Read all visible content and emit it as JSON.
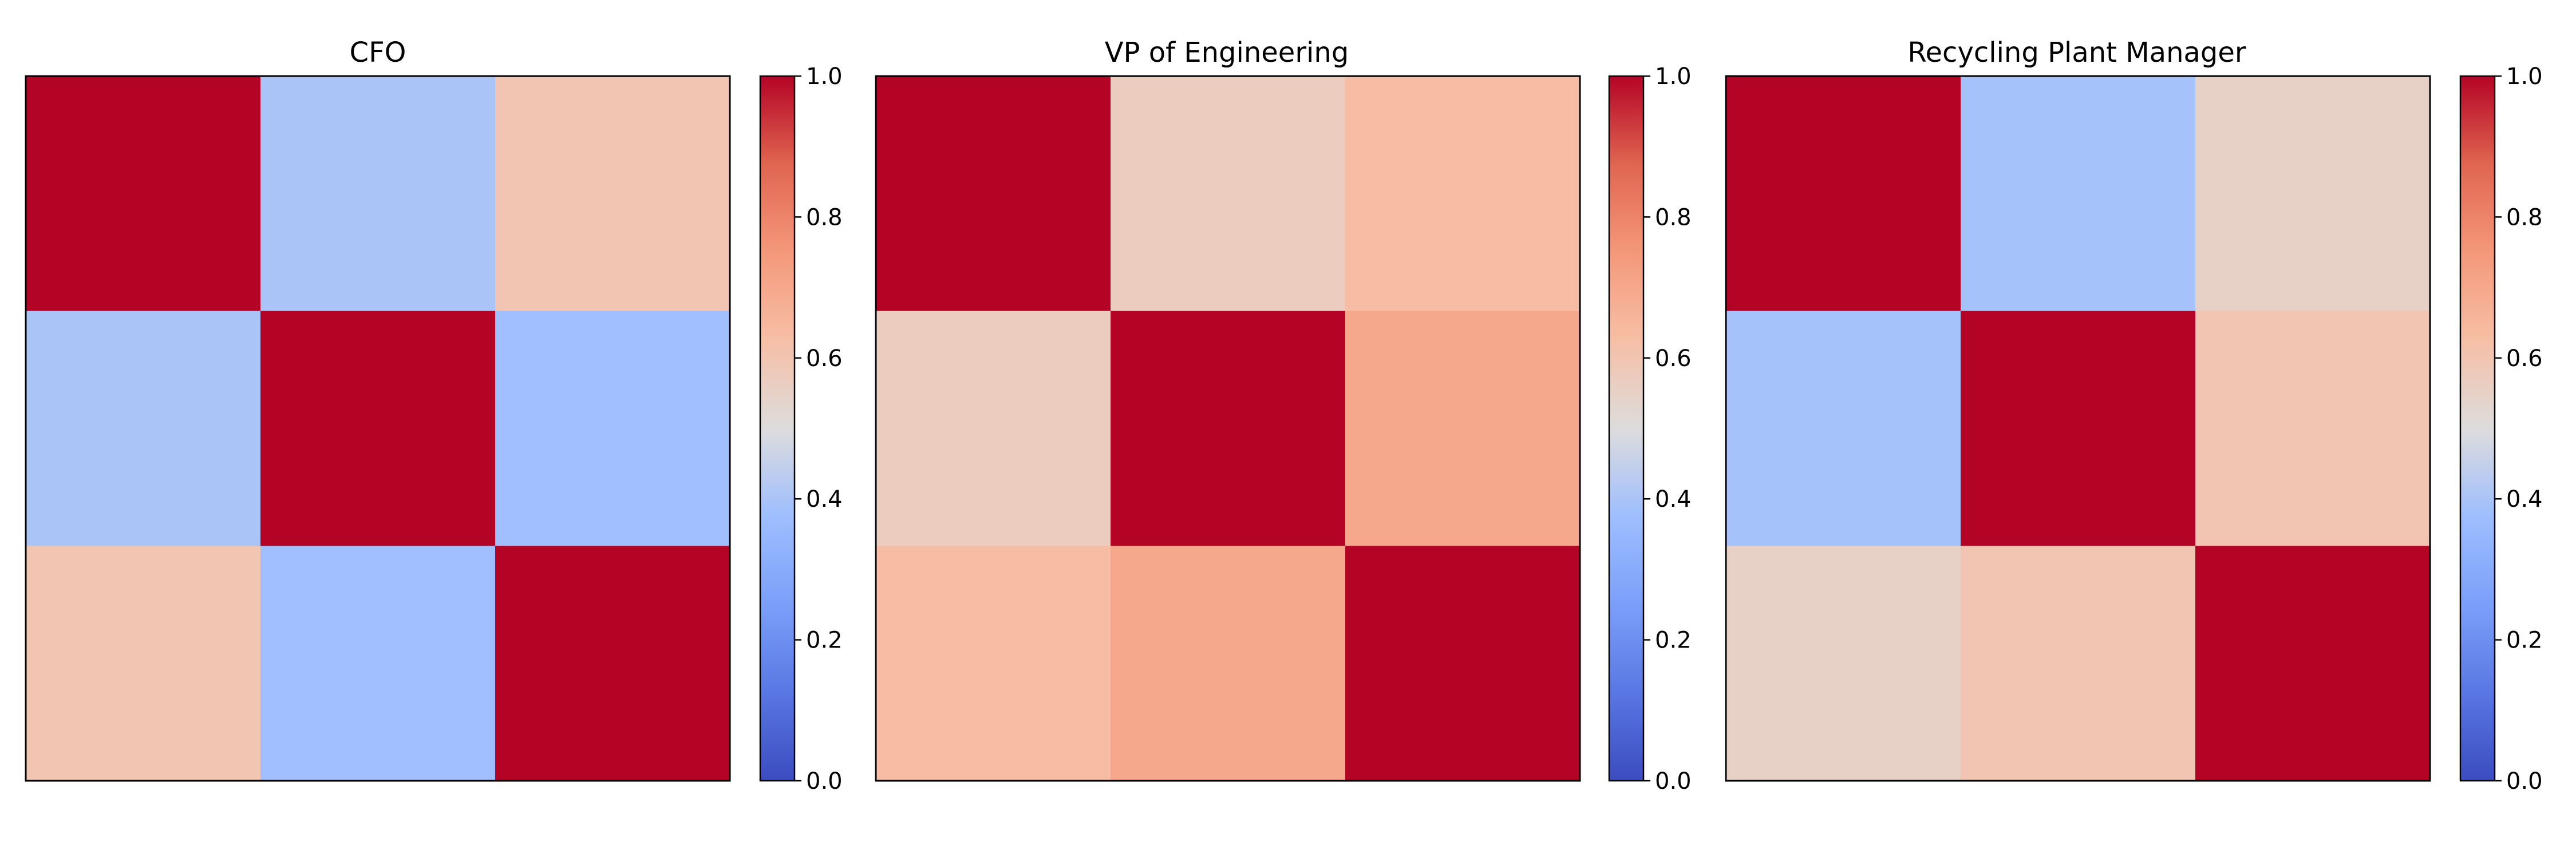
{
  "chart_data": [
    {
      "type": "heatmap",
      "title": "CFO",
      "matrix": [
        [
          1.0,
          0.4,
          0.6
        ],
        [
          0.4,
          1.0,
          0.38
        ],
        [
          0.6,
          0.38,
          1.0
        ]
      ],
      "colorbar": {
        "min": 0.0,
        "max": 1.0,
        "ticks": [
          "0.0",
          "0.2",
          "0.4",
          "0.6",
          "0.8",
          "1.0"
        ]
      },
      "colormap": "coolwarm"
    },
    {
      "type": "heatmap",
      "title": "VP of Engineering",
      "matrix": [
        [
          1.0,
          0.57,
          0.63
        ],
        [
          0.57,
          1.0,
          0.7
        ],
        [
          0.63,
          0.7,
          1.0
        ]
      ],
      "colorbar": {
        "min": 0.0,
        "max": 1.0,
        "ticks": [
          "0.0",
          "0.2",
          "0.4",
          "0.6",
          "0.8",
          "1.0"
        ]
      },
      "colormap": "coolwarm"
    },
    {
      "type": "heatmap",
      "title": "Recycling Plant Manager",
      "matrix": [
        [
          1.0,
          0.39,
          0.55
        ],
        [
          0.39,
          1.0,
          0.6
        ],
        [
          0.55,
          0.6,
          1.0
        ]
      ],
      "colorbar": {
        "min": 0.0,
        "max": 1.0,
        "ticks": [
          "0.0",
          "0.2",
          "0.4",
          "0.6",
          "0.8",
          "1.0"
        ]
      },
      "colormap": "coolwarm"
    }
  ]
}
